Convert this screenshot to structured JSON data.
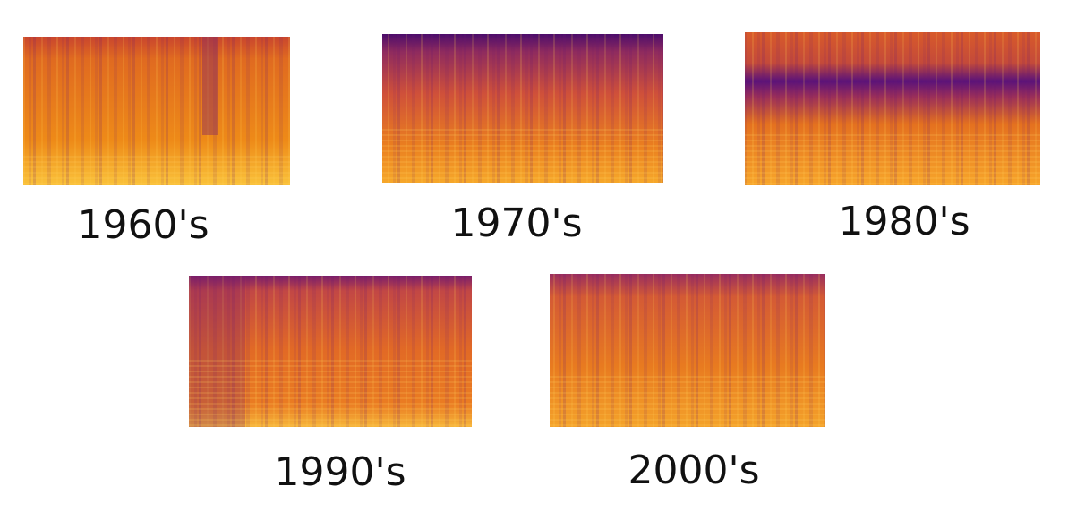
{
  "panels": [
    {
      "label": "1960's"
    },
    {
      "label": "1970's"
    },
    {
      "label": "1980's"
    },
    {
      "label": "1990's"
    },
    {
      "label": "2000's"
    }
  ]
}
